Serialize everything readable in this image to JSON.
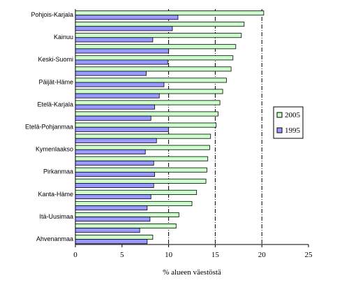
{
  "chart_data": {
    "type": "bar",
    "orientation": "horizontal",
    "title": "",
    "xlabel": "% alueen väestöstä",
    "ylabel": "",
    "xlim": [
      0,
      25
    ],
    "xticks": [
      0,
      5,
      10,
      15,
      20,
      25
    ],
    "grid": "vertical dashed lines at 10, 15, 20",
    "legend_position": "right",
    "category_labels": [
      "Pohjois-Karjala",
      "",
      "Kainuu",
      "",
      "Keski-Suomi",
      "",
      "Päijät-Häme",
      "",
      "Etelä-Karjala",
      "",
      "Etelä-Pohjanmaa",
      "",
      "Kymenlaakso",
      "",
      "Pirkanmaa",
      "",
      "Kanta-Häme",
      "",
      "Itä-Uusimaa",
      "",
      "Ahvenanmaa"
    ],
    "series": [
      {
        "name": "2005",
        "color": "#ccffcc",
        "values": [
          20.2,
          18.1,
          17.8,
          17.2,
          16.9,
          16.7,
          16.2,
          15.8,
          15.5,
          15.3,
          15.1,
          14.5,
          14.4,
          14.2,
          14.1,
          14.0,
          13.0,
          12.5,
          11.1,
          10.8,
          8.3
        ]
      },
      {
        "name": "1995",
        "color": "#9999ff",
        "values": [
          11.0,
          10.4,
          8.3,
          10.0,
          9.9,
          7.6,
          9.5,
          9.0,
          8.5,
          8.1,
          10.0,
          8.7,
          7.5,
          8.4,
          8.5,
          8.4,
          8.1,
          7.7,
          8.0,
          6.9,
          7.7
        ]
      }
    ]
  }
}
